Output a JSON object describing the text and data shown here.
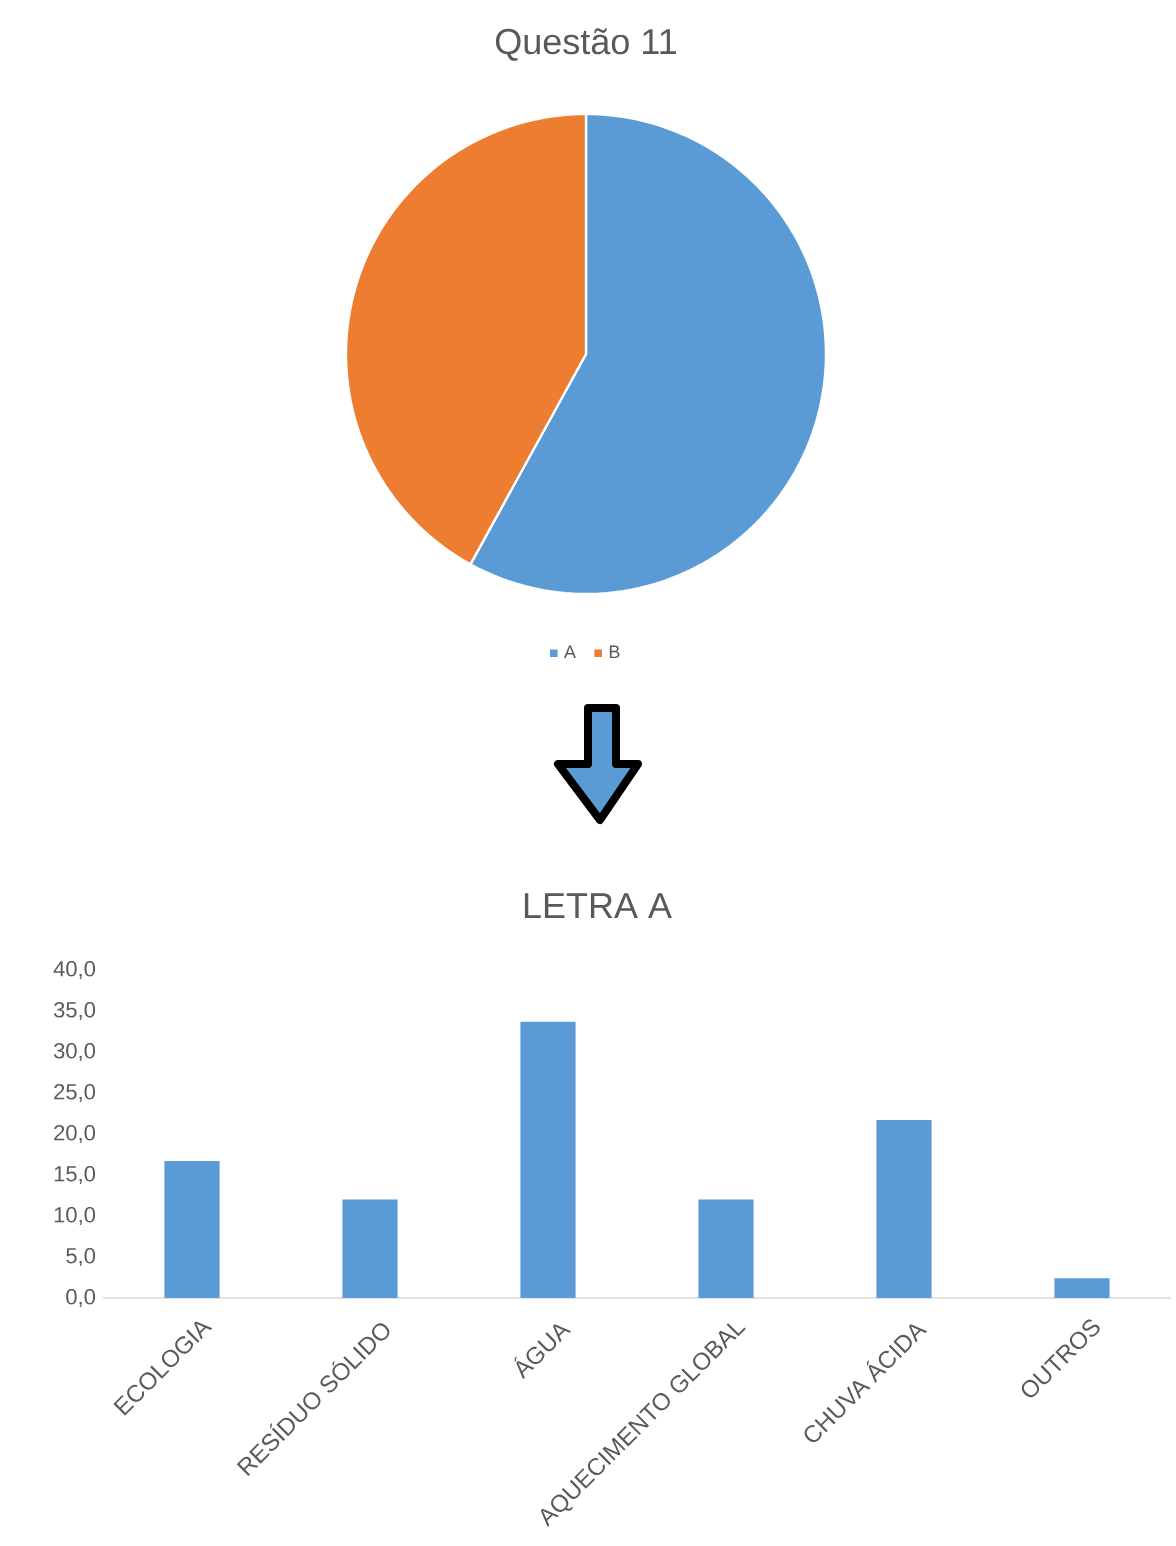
{
  "chart_data": [
    {
      "type": "pie",
      "title": "Questão 11",
      "categories": [
        "A",
        "B"
      ],
      "values": [
        58,
        42
      ],
      "colors": [
        "#5b9bd5",
        "#ed7d31"
      ],
      "legend": "bottom"
    },
    {
      "type": "bar",
      "title": "LETRA A",
      "categories": [
        "ECOLOGIA",
        "RESÍDUO SÓLIDO",
        "ÁGUA",
        "AQUECIMENTO GLOBAL",
        "CHUVA ÁCIDA",
        "OUTROS"
      ],
      "values": [
        16.7,
        12.0,
        33.7,
        12.0,
        21.7,
        2.4
      ],
      "color": "#5b9bd5",
      "ylim": [
        0,
        40
      ],
      "yticks": [
        {
          "value": 0,
          "label": "0,0"
        },
        {
          "value": 5,
          "label": "5,0"
        },
        {
          "value": 10,
          "label": "10,0"
        },
        {
          "value": 15,
          "label": "15,0"
        },
        {
          "value": 20,
          "label": "20,0"
        },
        {
          "value": 25,
          "label": "25,0"
        },
        {
          "value": 30,
          "label": "30,0"
        },
        {
          "value": 35,
          "label": "35,0"
        },
        {
          "value": 40,
          "label": "40,0"
        }
      ]
    }
  ]
}
